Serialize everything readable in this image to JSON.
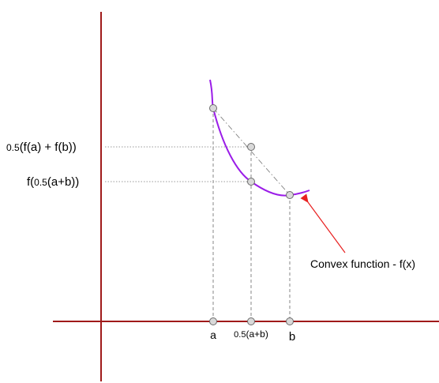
{
  "labels": {
    "y_upper_prefix": "0.5",
    "y_upper_rest": "(f(a) + f(b))",
    "y_lower_prefix": "f(",
    "y_lower_mid": "0.5",
    "y_lower_rest": "(a+b))",
    "x_a": "a",
    "x_mid_prefix": "0.5",
    "x_mid_rest": "(a+b)",
    "x_b": "b",
    "curve_annotation": "Convex function - f(x)"
  },
  "colors": {
    "axes": "#a01a1a",
    "curve": "#9b1de8",
    "arrow": "#e82020",
    "guide": "#7a7a7a",
    "point_fill": "#d9d9d9",
    "point_stroke": "#6b6b6b"
  }
}
